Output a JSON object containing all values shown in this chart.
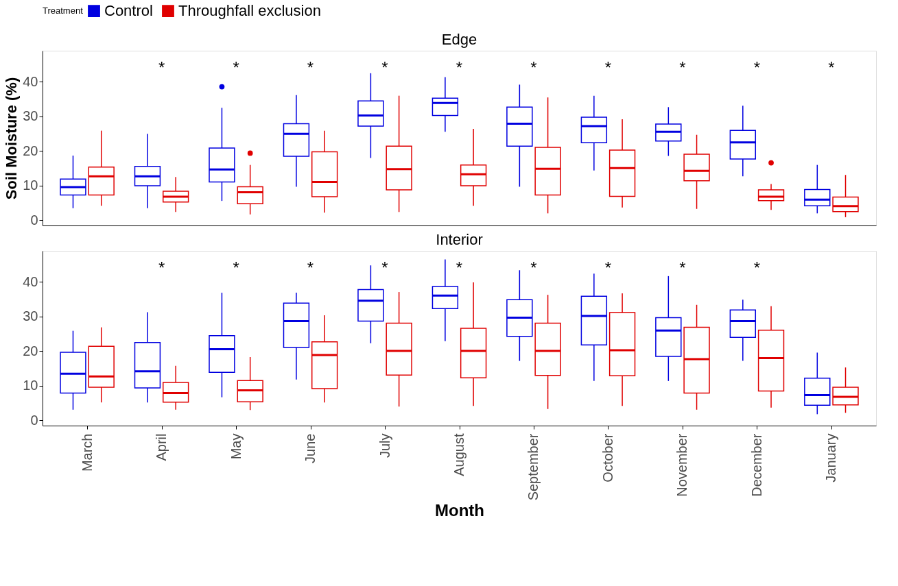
{
  "chart_data": [
    {
      "type": "box",
      "title": "Edge",
      "ylabel": "Soil Moisture (%)",
      "legend_title": "Treatment",
      "legend": "top",
      "tick_labels": "y",
      "grid": false,
      "ylim": [
        -1.5,
        49
      ],
      "yticks": [
        0,
        10,
        20,
        30,
        40
      ],
      "series": [
        {
          "name": "Control",
          "color": "#0000e0",
          "boxes": [
            {
              "low": 3.5,
              "q1": 7.3,
              "median": 9.6,
              "q3": 11.9,
              "high": 18.7
            },
            {
              "low": 3.5,
              "q1": 10.0,
              "median": 12.7,
              "q3": 15.6,
              "high": 25.0
            },
            {
              "low": 5.6,
              "q1": 11.1,
              "median": 14.7,
              "q3": 20.9,
              "high": 32.5,
              "outliers": [
                38.6
              ]
            },
            {
              "low": 9.7,
              "q1": 18.5,
              "median": 25.0,
              "q3": 27.9,
              "high": 36.2
            },
            {
              "low": 18.0,
              "q1": 27.2,
              "median": 30.3,
              "q3": 34.5,
              "high": 42.5
            },
            {
              "low": 25.6,
              "q1": 30.3,
              "median": 33.9,
              "q3": 35.3,
              "high": 41.4
            },
            {
              "low": 9.7,
              "q1": 21.4,
              "median": 27.9,
              "q3": 32.7,
              "high": 39.2
            },
            {
              "low": 14.4,
              "q1": 22.4,
              "median": 27.2,
              "q3": 29.8,
              "high": 36.0
            },
            {
              "low": 18.6,
              "q1": 22.9,
              "median": 25.6,
              "q3": 27.8,
              "high": 32.7
            },
            {
              "low": 12.7,
              "q1": 17.7,
              "median": 22.5,
              "q3": 26.0,
              "high": 33.1
            },
            {
              "low": 2.0,
              "q1": 4.2,
              "median": 6.0,
              "q3": 8.9,
              "high": 16.0
            }
          ]
        },
        {
          "name": "Throughfall exclusion",
          "color": "#e00000",
          "boxes": [
            {
              "low": 4.2,
              "q1": 7.3,
              "median": 12.7,
              "q3": 15.4,
              "high": 25.9
            },
            {
              "low": 2.4,
              "q1": 5.3,
              "median": 6.8,
              "q3": 8.4,
              "high": 12.5
            },
            {
              "low": 1.7,
              "q1": 4.8,
              "median": 8.1,
              "q3": 9.7,
              "high": 16.0,
              "outliers": [
                19.4
              ]
            },
            {
              "low": 2.2,
              "q1": 6.8,
              "median": 11.1,
              "q3": 19.8,
              "high": 25.9
            },
            {
              "low": 2.4,
              "q1": 8.8,
              "median": 14.8,
              "q3": 21.4,
              "high": 36.0
            },
            {
              "low": 4.2,
              "q1": 10.0,
              "median": 13.3,
              "q3": 16.0,
              "high": 26.4
            },
            {
              "low": 2.0,
              "q1": 7.3,
              "median": 14.9,
              "q3": 21.1,
              "high": 35.5
            },
            {
              "low": 3.7,
              "q1": 6.9,
              "median": 15.1,
              "q3": 20.3,
              "high": 29.2
            },
            {
              "low": 3.3,
              "q1": 11.4,
              "median": 14.3,
              "q3": 19.1,
              "high": 24.7
            },
            {
              "low": 3.0,
              "q1": 5.7,
              "median": 6.8,
              "q3": 8.8,
              "high": 10.5,
              "outliers": [
                16.6
              ]
            },
            {
              "low": 0.9,
              "q1": 2.5,
              "median": 4.1,
              "q3": 6.7,
              "high": 13.1
            }
          ]
        }
      ],
      "annotations": [
        "*",
        "*",
        "*",
        "*",
        "*",
        "*",
        "*",
        "*",
        "*",
        "*"
      ]
    },
    {
      "type": "box",
      "title": "Interior",
      "xlabel": "Month",
      "grid": false,
      "categories": [
        "March",
        "April",
        "May",
        "June",
        "July",
        "August",
        "September",
        "October",
        "November",
        "December",
        "January"
      ],
      "ylim": [
        -1.5,
        49
      ],
      "yticks": [
        0,
        10,
        20,
        30,
        40
      ],
      "series": [
        {
          "name": "Control",
          "color": "#0000e0",
          "boxes": [
            {
              "low": 3.1,
              "q1": 7.9,
              "median": 13.5,
              "q3": 19.7,
              "high": 25.9
            },
            {
              "low": 5.2,
              "q1": 9.4,
              "median": 14.2,
              "q3": 22.5,
              "high": 31.3
            },
            {
              "low": 6.7,
              "q1": 13.9,
              "median": 20.6,
              "q3": 24.5,
              "high": 36.9
            },
            {
              "low": 11.8,
              "q1": 21.1,
              "median": 28.7,
              "q3": 33.9,
              "high": 36.9
            },
            {
              "low": 22.3,
              "q1": 28.7,
              "median": 34.6,
              "q3": 37.8,
              "high": 44.8
            },
            {
              "low": 22.9,
              "q1": 32.3,
              "median": 36.1,
              "q3": 38.7,
              "high": 46.5
            },
            {
              "low": 17.2,
              "q1": 24.3,
              "median": 29.7,
              "q3": 34.9,
              "high": 43.4
            },
            {
              "low": 11.4,
              "q1": 21.8,
              "median": 30.2,
              "q3": 35.9,
              "high": 42.4
            },
            {
              "low": 11.4,
              "q1": 18.5,
              "median": 26.0,
              "q3": 29.7,
              "high": 41.7
            },
            {
              "low": 17.2,
              "q1": 24.0,
              "median": 28.7,
              "q3": 31.9,
              "high": 34.9
            },
            {
              "low": 1.8,
              "q1": 4.4,
              "median": 7.3,
              "q3": 12.2,
              "high": 19.6
            }
          ]
        },
        {
          "name": "Throughfall exclusion",
          "color": "#e00000",
          "boxes": [
            {
              "low": 5.2,
              "q1": 9.6,
              "median": 12.7,
              "q3": 21.4,
              "high": 26.9
            },
            {
              "low": 3.1,
              "q1": 5.3,
              "median": 7.9,
              "q3": 11.0,
              "high": 15.8
            },
            {
              "low": 3.0,
              "q1": 5.4,
              "median": 8.7,
              "q3": 11.5,
              "high": 18.3
            },
            {
              "low": 5.2,
              "q1": 9.2,
              "median": 18.9,
              "q3": 22.7,
              "high": 30.4
            },
            {
              "low": 4.0,
              "q1": 13.1,
              "median": 20.1,
              "q3": 28.1,
              "high": 37.1
            },
            {
              "low": 4.2,
              "q1": 12.3,
              "median": 20.1,
              "q3": 26.6,
              "high": 39.9
            },
            {
              "low": 3.3,
              "q1": 13.0,
              "median": 20.1,
              "q3": 28.1,
              "high": 36.3
            },
            {
              "low": 4.2,
              "q1": 12.9,
              "median": 20.3,
              "q3": 31.2,
              "high": 36.7
            },
            {
              "low": 3.1,
              "q1": 7.9,
              "median": 17.7,
              "q3": 26.9,
              "high": 33.4
            },
            {
              "low": 3.7,
              "q1": 8.5,
              "median": 18.0,
              "q3": 26.1,
              "high": 33.0
            },
            {
              "low": 2.2,
              "q1": 4.5,
              "median": 6.8,
              "q3": 9.6,
              "high": 15.3
            }
          ]
        }
      ],
      "annotations": [
        "*",
        "*",
        "*",
        "*",
        "*",
        "*",
        "*",
        "*",
        "*"
      ]
    }
  ]
}
